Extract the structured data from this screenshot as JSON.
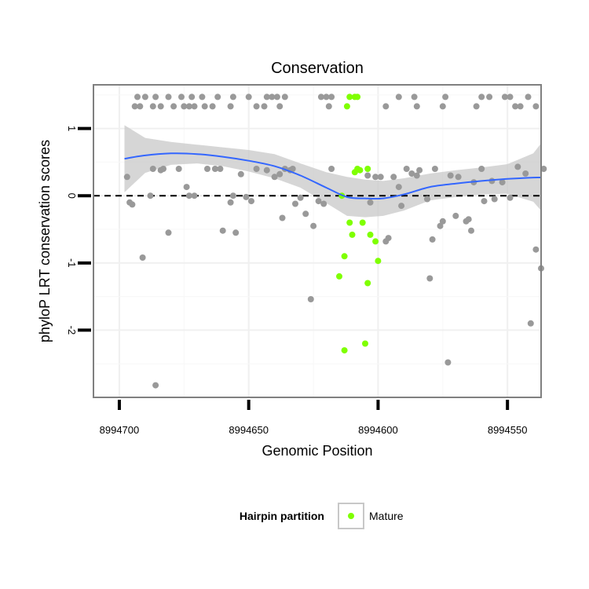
{
  "chart_data": {
    "type": "scatter",
    "title": "Conservation",
    "xlabel": "Genomic Position",
    "ylabel": "phyloP LRT conservation scores",
    "x_reversed": true,
    "xlim": [
      8994710,
      8994537
    ],
    "ylim": [
      -3,
      1.65
    ],
    "x_ticks": [
      8994700,
      8994650,
      8994600,
      8994550
    ],
    "x_tick_labels": [
      "8994700",
      "8994650",
      "8994600",
      "8994550"
    ],
    "y_ticks": [
      -2,
      -1,
      0,
      1
    ],
    "y_tick_labels": [
      "-2",
      "-1",
      "0",
      "1"
    ],
    "grid": true,
    "reference_line": {
      "y": 0,
      "style": "dashed"
    },
    "legend": {
      "title": "Hairpin partition",
      "placement": "bottom",
      "entries": [
        {
          "label": "Mature",
          "color": "#7fff00"
        }
      ]
    },
    "colors": {
      "other": "#999999",
      "mature": "#7fff00",
      "smooth": "#3366ff",
      "ribbon": "#c8c8c8"
    },
    "series": [
      {
        "group": "other",
        "points": [
          [
            8994693,
            1.47
          ],
          [
            8994690,
            1.47
          ],
          [
            8994686,
            1.47
          ],
          [
            8994681,
            1.47
          ],
          [
            8994676,
            1.47
          ],
          [
            8994672,
            1.47
          ],
          [
            8994668,
            1.47
          ],
          [
            8994662,
            1.47
          ],
          [
            8994656,
            1.47
          ],
          [
            8994650,
            1.47
          ],
          [
            8994643,
            1.47
          ],
          [
            8994641,
            1.47
          ],
          [
            8994639,
            1.47
          ],
          [
            8994636,
            1.47
          ],
          [
            8994622,
            1.47
          ],
          [
            8994620,
            1.47
          ],
          [
            8994618,
            1.47
          ],
          [
            8994592,
            1.47
          ],
          [
            8994586,
            1.47
          ],
          [
            8994574,
            1.47
          ],
          [
            8994560,
            1.47
          ],
          [
            8994557,
            1.47
          ],
          [
            8994551,
            1.47
          ],
          [
            8994549,
            1.47
          ],
          [
            8994542,
            1.47
          ],
          [
            8994694,
            1.33
          ],
          [
            8994692,
            1.33
          ],
          [
            8994687,
            1.33
          ],
          [
            8994684,
            1.33
          ],
          [
            8994679,
            1.33
          ],
          [
            8994675,
            1.33
          ],
          [
            8994673,
            1.33
          ],
          [
            8994671,
            1.33
          ],
          [
            8994667,
            1.33
          ],
          [
            8994664,
            1.33
          ],
          [
            8994657,
            1.33
          ],
          [
            8994647,
            1.33
          ],
          [
            8994644,
            1.33
          ],
          [
            8994638,
            1.33
          ],
          [
            8994619,
            1.33
          ],
          [
            8994597,
            1.33
          ],
          [
            8994585,
            1.33
          ],
          [
            8994575,
            1.33
          ],
          [
            8994562,
            1.33
          ],
          [
            8994547,
            1.33
          ],
          [
            8994545,
            1.33
          ],
          [
            8994539,
            1.33
          ],
          [
            8994697,
            0.28
          ],
          [
            8994696,
            -0.1
          ],
          [
            8994695,
            -0.13
          ],
          [
            8994691,
            -0.92
          ],
          [
            8994688,
            0
          ],
          [
            8994687,
            0.4
          ],
          [
            8994684,
            0.38
          ],
          [
            8994683,
            0.4
          ],
          [
            8994681,
            -0.55
          ],
          [
            8994677,
            0.4
          ],
          [
            8994674,
            0.13
          ],
          [
            8994673,
            0
          ],
          [
            8994671,
            0
          ],
          [
            8994666,
            0.4
          ],
          [
            8994663,
            0.4
          ],
          [
            8994661,
            0.4
          ],
          [
            8994660,
            -0.52
          ],
          [
            8994657,
            -0.1
          ],
          [
            8994656,
            0
          ],
          [
            8994655,
            -0.55
          ],
          [
            8994653,
            0.32
          ],
          [
            8994651,
            -0.02
          ],
          [
            8994649,
            -0.08
          ],
          [
            8994647,
            0.4
          ],
          [
            8994643,
            0.38
          ],
          [
            8994640,
            0.28
          ],
          [
            8994638,
            0.32
          ],
          [
            8994637,
            -0.33
          ],
          [
            8994636,
            0.4
          ],
          [
            8994634,
            0.38
          ],
          [
            8994633,
            0.4
          ],
          [
            8994632,
            -0.12
          ],
          [
            8994630,
            -0.03
          ],
          [
            8994628,
            -0.27
          ],
          [
            8994626,
            -1.54
          ],
          [
            8994625,
            -0.45
          ],
          [
            8994623,
            -0.08
          ],
          [
            8994621,
            -0.12
          ],
          [
            8994618,
            0.4
          ],
          [
            8994603,
            -0.1
          ],
          [
            8994604,
            0.3
          ],
          [
            8994601,
            0.28
          ],
          [
            8994599,
            0.28
          ],
          [
            8994597,
            -0.68
          ],
          [
            8994596,
            -0.63
          ],
          [
            8994594,
            0.28
          ],
          [
            8994592,
            0.13
          ],
          [
            8994591,
            -0.15
          ],
          [
            8994589,
            0.4
          ],
          [
            8994587,
            0.33
          ],
          [
            8994585,
            0.3
          ],
          [
            8994584,
            0.38
          ],
          [
            8994581,
            -0.05
          ],
          [
            8994580,
            -1.23
          ],
          [
            8994579,
            -0.65
          ],
          [
            8994578,
            0.4
          ],
          [
            8994576,
            -0.45
          ],
          [
            8994575,
            -0.38
          ],
          [
            8994573,
            -2.48
          ],
          [
            8994572,
            0.3
          ],
          [
            8994570,
            -0.3
          ],
          [
            8994569,
            0.28
          ],
          [
            8994566,
            -0.38
          ],
          [
            8994565,
            -0.35
          ],
          [
            8994564,
            -0.52
          ],
          [
            8994563,
            0.2
          ],
          [
            8994560,
            0.4
          ],
          [
            8994559,
            -0.08
          ],
          [
            8994556,
            0.22
          ],
          [
            8994555,
            -0.05
          ],
          [
            8994552,
            0.2
          ],
          [
            8994549,
            -0.03
          ],
          [
            8994546,
            0.43
          ],
          [
            8994543,
            0.33
          ],
          [
            8994541,
            -1.9
          ],
          [
            8994539,
            -0.8
          ],
          [
            8994537,
            -1.08
          ],
          [
            8994536,
            0.4
          ],
          [
            8994686,
            -2.82
          ]
        ]
      },
      {
        "group": "mature",
        "name": "Mature",
        "points": [
          [
            8994609,
            1.47
          ],
          [
            8994608,
            1.47
          ],
          [
            8994611,
            1.47
          ],
          [
            8994612,
            1.33
          ],
          [
            8994609,
            0.35
          ],
          [
            8994608,
            0.4
          ],
          [
            8994604,
            0.4
          ],
          [
            8994607,
            0.38
          ],
          [
            8994614,
            0
          ],
          [
            8994611,
            -0.4
          ],
          [
            8994606,
            -0.4
          ],
          [
            8994610,
            -0.58
          ],
          [
            8994603,
            -0.58
          ],
          [
            8994601,
            -0.68
          ],
          [
            8994613,
            -0.9
          ],
          [
            8994600,
            -0.97
          ],
          [
            8994615,
            -1.2
          ],
          [
            8994604,
            -1.3
          ],
          [
            8994613,
            -2.3
          ],
          [
            8994605,
            -2.2
          ]
        ]
      }
    ],
    "smooth_line": {
      "x": [
        8994698,
        8994690,
        8994680,
        8994670,
        8994660,
        8994650,
        8994640,
        8994630,
        8994620,
        8994612,
        8994605,
        8994598,
        8994590,
        8994580,
        8994570,
        8994560,
        8994550,
        8994540,
        8994537
      ],
      "y": [
        0.55,
        0.6,
        0.63,
        0.62,
        0.58,
        0.52,
        0.44,
        0.3,
        0.12,
        -0.02,
        -0.04,
        -0.04,
        0.02,
        0.13,
        0.18,
        0.22,
        0.25,
        0.27,
        0.27
      ],
      "band_upper": [
        1.05,
        0.86,
        0.8,
        0.76,
        0.72,
        0.68,
        0.62,
        0.48,
        0.35,
        0.28,
        0.24,
        0.22,
        0.26,
        0.33,
        0.38,
        0.42,
        0.47,
        0.63,
        0.78
      ],
      "band_lower": [
        0.05,
        0.34,
        0.46,
        0.48,
        0.44,
        0.36,
        0.26,
        0.12,
        -0.11,
        -0.3,
        -0.32,
        -0.3,
        -0.22,
        -0.07,
        -0.02,
        0.02,
        0.03,
        -0.09,
        -0.22
      ]
    }
  }
}
